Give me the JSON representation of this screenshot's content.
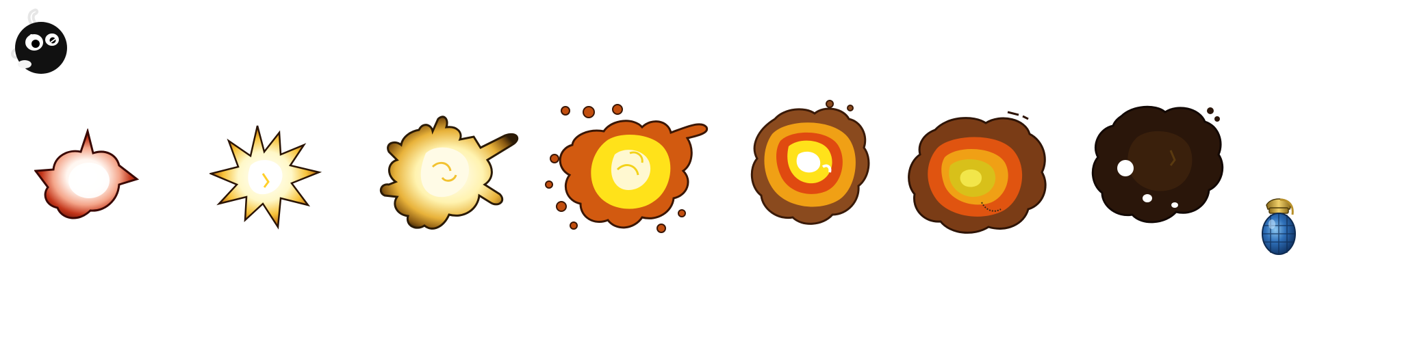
{
  "sheet": {
    "background": "#ffffff",
    "frame_count": 7
  },
  "sprites": [
    {
      "id": "bomb-mascot",
      "icon": "cartoon-bomb-icon"
    },
    {
      "id": "frame-1",
      "icon": "explosion-flash-icon",
      "frame": 1
    },
    {
      "id": "frame-2",
      "icon": "explosion-burst-icon",
      "frame": 2
    },
    {
      "id": "frame-3",
      "icon": "explosion-sparks-icon",
      "frame": 3
    },
    {
      "id": "frame-4",
      "icon": "explosion-fireball-icon",
      "frame": 4
    },
    {
      "id": "frame-5",
      "icon": "explosion-fire-smoke-icon",
      "frame": 5
    },
    {
      "id": "frame-6",
      "icon": "explosion-fading-fire-icon",
      "frame": 6
    },
    {
      "id": "frame-7",
      "icon": "explosion-smoke-cloud-icon",
      "frame": 7
    },
    {
      "id": "grenade",
      "icon": "blue-grenade-icon"
    }
  ],
  "palette": {
    "white_core": "#fffef0",
    "yellow": "#ffe21a",
    "orange": "#f08a12",
    "red_orange": "#e04a10",
    "dark_red": "#7a1608",
    "brown": "#8a4a1e",
    "smoke_dark": "#2a160a",
    "bomb_black": "#111111",
    "grenade_blue": "#2e6fb8",
    "grenade_gold": "#c9a23a"
  }
}
